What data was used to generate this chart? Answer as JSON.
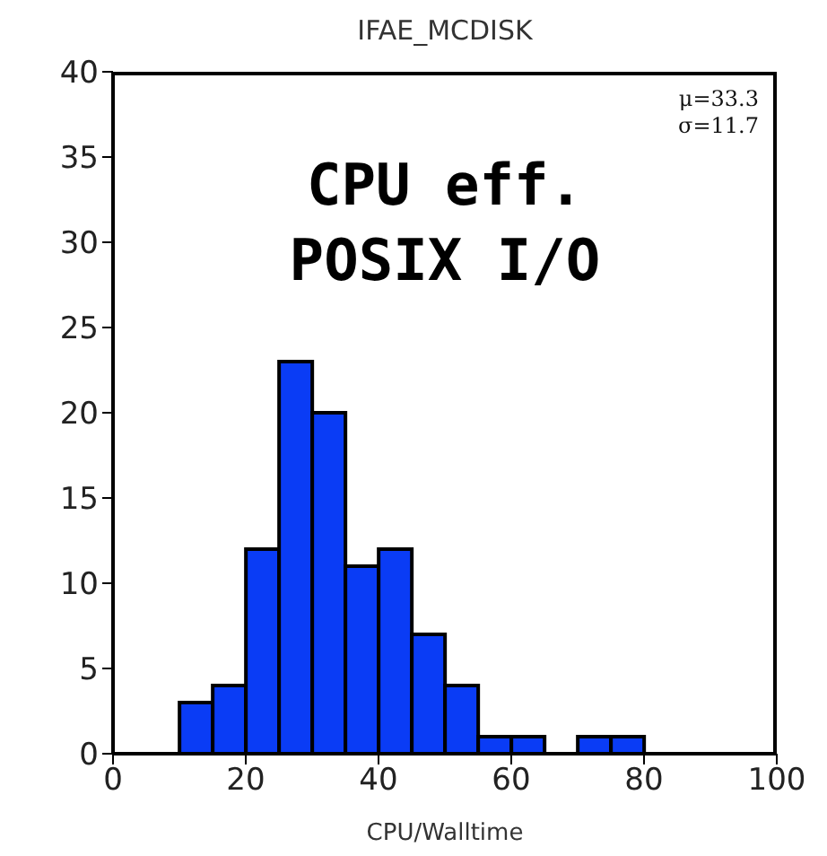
{
  "chart_data": {
    "type": "histogram",
    "title": "IFAE_MCDISK",
    "xlabel": "CPU/Walltime",
    "bins": [
      10,
      15,
      20,
      25,
      30,
      35,
      40,
      45,
      50,
      55,
      60,
      65,
      70,
      75,
      80
    ],
    "values": [
      3,
      4,
      12,
      23,
      20,
      11,
      12,
      7,
      4,
      1,
      1,
      0,
      1,
      1
    ],
    "color": "#0a3cf5",
    "xlim": [
      0,
      100
    ],
    "xticks": [
      0,
      20,
      40,
      60,
      80,
      100
    ],
    "ylim": [
      0,
      40
    ],
    "yticks": [
      0,
      5,
      10,
      15,
      20,
      25,
      30,
      35,
      40
    ],
    "grid": false,
    "annotations": [
      "μ=33.3",
      "σ=11.7",
      "CPU eff.",
      "POSIX I/O"
    ]
  }
}
